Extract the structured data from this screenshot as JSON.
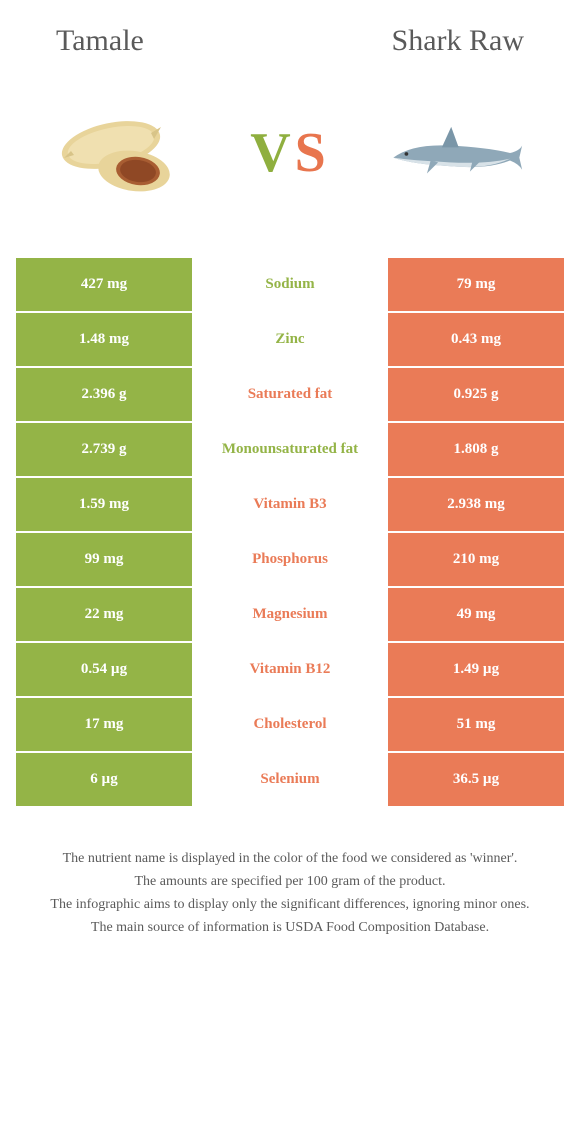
{
  "colors": {
    "left_food": "#94b447",
    "right_food": "#ea7b57",
    "text_dark": "#5a5a5a",
    "left_cell": "#94b447",
    "right_cell": "#ea7b57"
  },
  "header": {
    "left_title": "Tamale",
    "right_title": "Shark Raw"
  },
  "vs": {
    "v": "V",
    "s": "S"
  },
  "rows": [
    {
      "left": "427 mg",
      "label": "Sodium",
      "right": "79 mg",
      "winner": "left"
    },
    {
      "left": "1.48 mg",
      "label": "Zinc",
      "right": "0.43 mg",
      "winner": "left"
    },
    {
      "left": "2.396 g",
      "label": "Saturated fat",
      "right": "0.925 g",
      "winner": "right"
    },
    {
      "left": "2.739 g",
      "label": "Monounsaturated fat",
      "right": "1.808 g",
      "winner": "left"
    },
    {
      "left": "1.59 mg",
      "label": "Vitamin B3",
      "right": "2.938 mg",
      "winner": "right"
    },
    {
      "left": "99 mg",
      "label": "Phosphorus",
      "right": "210 mg",
      "winner": "right"
    },
    {
      "left": "22 mg",
      "label": "Magnesium",
      "right": "49 mg",
      "winner": "right"
    },
    {
      "left": "0.54 µg",
      "label": "Vitamin B12",
      "right": "1.49 µg",
      "winner": "right"
    },
    {
      "left": "17 mg",
      "label": "Cholesterol",
      "right": "51 mg",
      "winner": "right"
    },
    {
      "left": "6 µg",
      "label": "Selenium",
      "right": "36.5 µg",
      "winner": "right"
    }
  ],
  "footnotes": [
    "The nutrient name is displayed in the color of the food we considered as 'winner'.",
    "The amounts are specified per 100 gram of the product.",
    "The infographic aims to display only the significant differences, ignoring minor ones.",
    "The main source of information is USDA Food Composition Database."
  ]
}
